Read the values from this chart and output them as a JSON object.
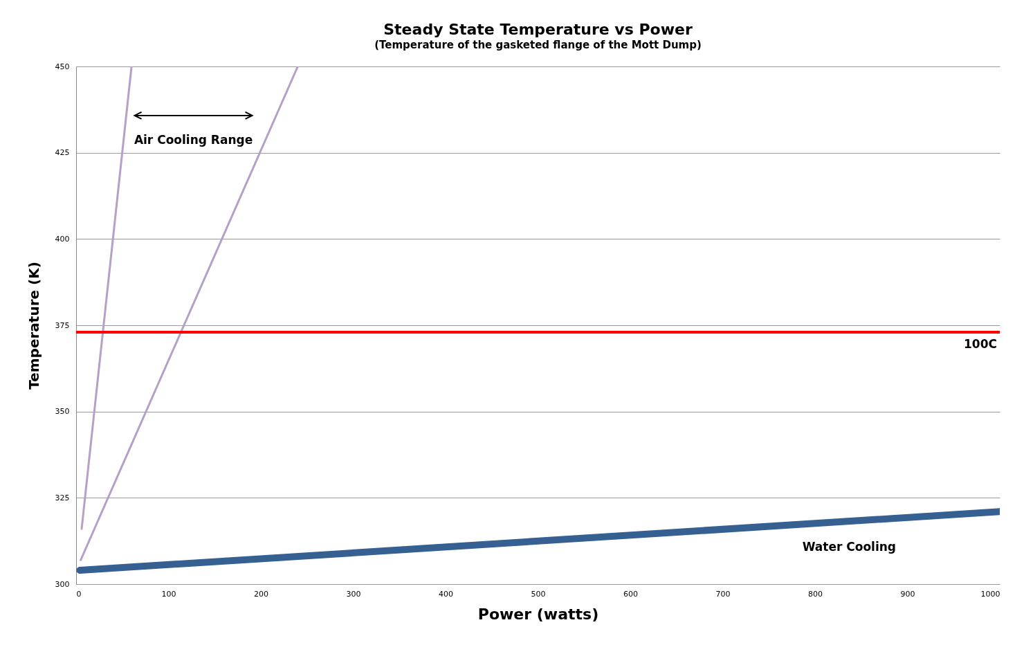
{
  "chart_data": {
    "type": "line",
    "title": "Steady State Temperature vs Power",
    "subtitle": "(Temperature of the gasketed flange of the Mott Dump)",
    "xlabel": "Power (watts)",
    "ylabel": "Temperature (K)",
    "xlim": [
      0,
      1000
    ],
    "xticks": [
      0,
      100,
      200,
      300,
      400,
      500,
      600,
      700,
      800,
      900,
      1000
    ],
    "ylim": [
      300,
      450
    ],
    "yticks": [
      300,
      325,
      350,
      375,
      400,
      425,
      450
    ],
    "grid": "y",
    "series": [
      {
        "color": "#b3a2c7",
        "x": [
          6,
          60
        ],
        "values": [
          316,
          450
        ]
      },
      {
        "color": "#b3a2c7",
        "x": [
          5,
          240
        ],
        "values": [
          307,
          450
        ]
      },
      {
        "name": "Water Cooling",
        "color": "#376092",
        "x": [
          4,
          1000
        ],
        "values": [
          304,
          321
        ]
      }
    ],
    "ref_lines": [
      {
        "axis": "y",
        "value": 373,
        "label": "100C",
        "color": "#ff0000"
      }
    ],
    "annotations": [
      "Air Cooling Range"
    ]
  }
}
